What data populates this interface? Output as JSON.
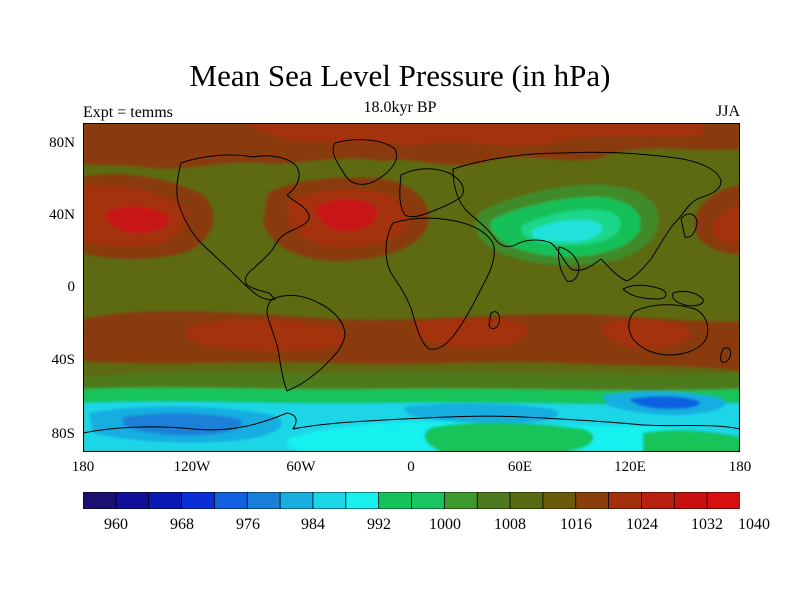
{
  "figure": {
    "title": "Mean Sea Level Pressure (in hPa)",
    "subtitle": "18.0kyr BP",
    "left_label": "Expt = temms",
    "right_label": "JJA"
  },
  "axes": {
    "lat_labels": [
      "80N",
      "40N",
      "0",
      "40S",
      "80S"
    ],
    "lon_labels": [
      "180",
      "120W",
      "60W",
      "0",
      "60E",
      "120E",
      "180"
    ]
  },
  "colorbar": {
    "colors": [
      "#1a1070",
      "#120f99",
      "#0a1ab4",
      "#0a2ed6",
      "#1060e0",
      "#1a7fd8",
      "#18aee0",
      "#1ad6e8",
      "#18f0ee",
      "#14c45a",
      "#1ac460",
      "#3f9a2e",
      "#4e7a1f",
      "#586a12",
      "#6b5a0c",
      "#8a3f0a",
      "#a3300a",
      "#b81f0f",
      "#c81010",
      "#d61010"
    ],
    "labels": [
      "960",
      "968",
      "976",
      "984",
      "992",
      "1000",
      "1008",
      "1016",
      "1024",
      "1032",
      "1040"
    ]
  }
}
